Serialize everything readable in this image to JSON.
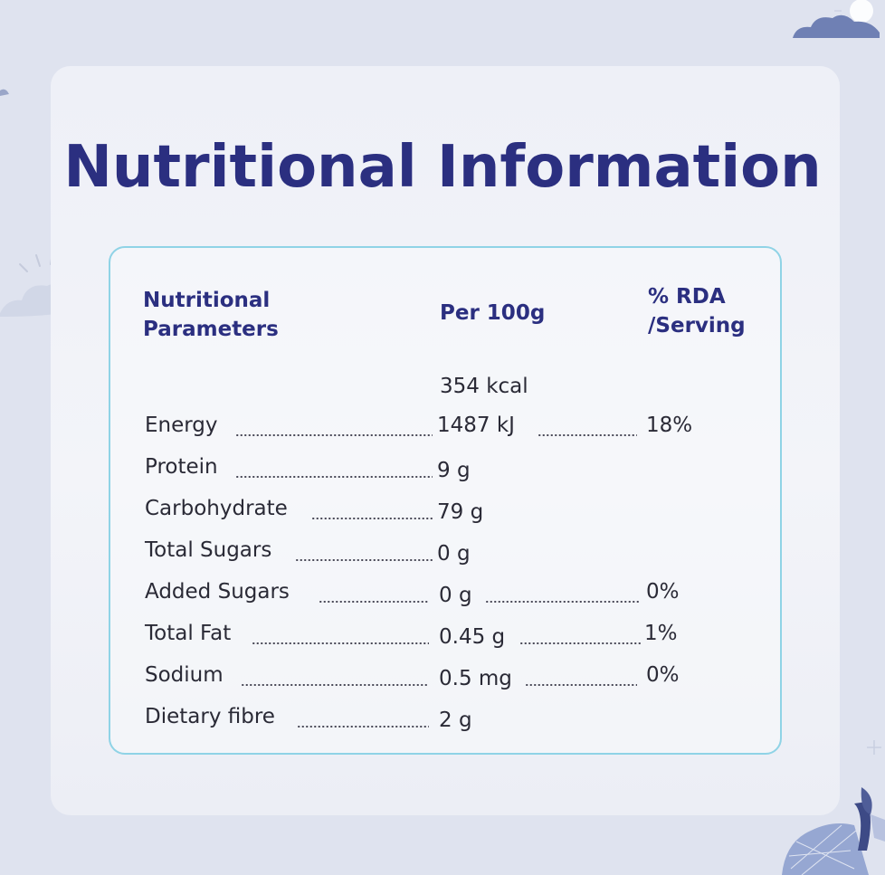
{
  "title": "Nutritional Information",
  "table": {
    "headers": {
      "parameter": "Nutritional\nParameters",
      "per_100g": "Per 100g",
      "rda": "% RDA\n/Serving"
    },
    "energy_kcal": "354 kcal",
    "rows": [
      {
        "name": "Energy",
        "per_100g": "1487 kJ",
        "rda": "18%"
      },
      {
        "name": "Protein",
        "per_100g": "9 g",
        "rda": ""
      },
      {
        "name": "Carbohydrate",
        "per_100g": "79 g",
        "rda": ""
      },
      {
        "name": "Total Sugars",
        "per_100g": "0 g",
        "rda": ""
      },
      {
        "name": "Added Sugars",
        "per_100g": "0 g",
        "rda": "0%"
      },
      {
        "name": "Total Fat",
        "per_100g": "0.45 g",
        "rda": "1%"
      },
      {
        "name": "Sodium",
        "per_100g": "0.5 mg",
        "rda": "0%"
      },
      {
        "name": "Dietary fibre",
        "per_100g": "2 g",
        "rda": ""
      }
    ]
  },
  "colors": {
    "title": "#2b2f80",
    "panel_border": "#8fd3e6",
    "background": "#dfe3ef"
  },
  "decor_icons": [
    "cloud-sun-icon",
    "cloud-icon",
    "sun-rays-icon",
    "sparkle-icon",
    "wheat-icon"
  ]
}
